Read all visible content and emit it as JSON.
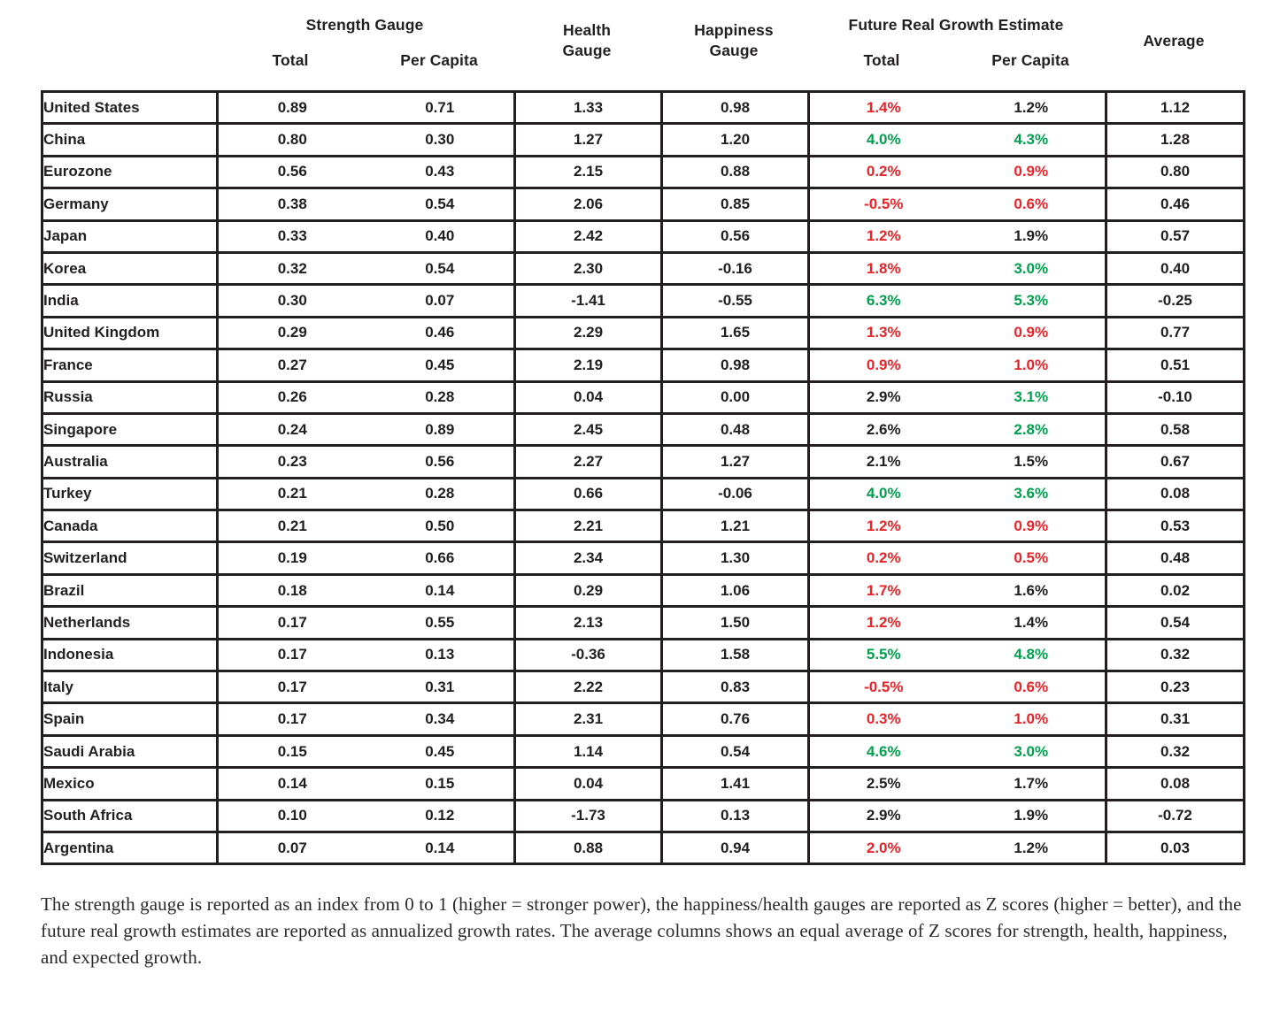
{
  "table": {
    "header": {
      "strength_group": "Strength Gauge",
      "growth_group": "Future Real Growth Estimate",
      "health_line1": "Health",
      "health_line2": "Gauge",
      "happiness_line1": "Happiness",
      "happiness_line2": "Gauge",
      "sub_total_strength": "Total",
      "sub_per_capita_strength": "Per Capita",
      "sub_total_growth": "Total",
      "sub_per_capita_growth": "Per Capita",
      "average": "Average"
    },
    "colors": {
      "red": "#e82429",
      "green": "#00a14e",
      "text": "#231f20",
      "border": "#231f20"
    },
    "rows": [
      {
        "country": "United States",
        "strength_total": "0.89",
        "strength_per_capita": "0.71",
        "health": "1.33",
        "happiness": "0.98",
        "growth_total": "1.4%",
        "growth_total_color": "red",
        "growth_per_capita": "1.2%",
        "growth_per_capita_color": "black",
        "average": "1.12"
      },
      {
        "country": "China",
        "strength_total": "0.80",
        "strength_per_capita": "0.30",
        "health": "1.27",
        "happiness": "1.20",
        "growth_total": "4.0%",
        "growth_total_color": "green",
        "growth_per_capita": "4.3%",
        "growth_per_capita_color": "green",
        "average": "1.28"
      },
      {
        "country": "Eurozone",
        "strength_total": "0.56",
        "strength_per_capita": "0.43",
        "health": "2.15",
        "happiness": "0.88",
        "growth_total": "0.2%",
        "growth_total_color": "red",
        "growth_per_capita": "0.9%",
        "growth_per_capita_color": "red",
        "average": "0.80"
      },
      {
        "country": "Germany",
        "strength_total": "0.38",
        "strength_per_capita": "0.54",
        "health": "2.06",
        "happiness": "0.85",
        "growth_total": "-0.5%",
        "growth_total_color": "red",
        "growth_per_capita": "0.6%",
        "growth_per_capita_color": "red",
        "average": "0.46"
      },
      {
        "country": "Japan",
        "strength_total": "0.33",
        "strength_per_capita": "0.40",
        "health": "2.42",
        "happiness": "0.56",
        "growth_total": "1.2%",
        "growth_total_color": "red",
        "growth_per_capita": "1.9%",
        "growth_per_capita_color": "black",
        "average": "0.57"
      },
      {
        "country": "Korea",
        "strength_total": "0.32",
        "strength_per_capita": "0.54",
        "health": "2.30",
        "happiness": "-0.16",
        "growth_total": "1.8%",
        "growth_total_color": "red",
        "growth_per_capita": "3.0%",
        "growth_per_capita_color": "green",
        "average": "0.40"
      },
      {
        "country": "India",
        "strength_total": "0.30",
        "strength_per_capita": "0.07",
        "health": "-1.41",
        "happiness": "-0.55",
        "growth_total": "6.3%",
        "growth_total_color": "green",
        "growth_per_capita": "5.3%",
        "growth_per_capita_color": "green",
        "average": "-0.25"
      },
      {
        "country": "United Kingdom",
        "strength_total": "0.29",
        "strength_per_capita": "0.46",
        "health": "2.29",
        "happiness": "1.65",
        "growth_total": "1.3%",
        "growth_total_color": "red",
        "growth_per_capita": "0.9%",
        "growth_per_capita_color": "red",
        "average": "0.77"
      },
      {
        "country": "France",
        "strength_total": "0.27",
        "strength_per_capita": "0.45",
        "health": "2.19",
        "happiness": "0.98",
        "growth_total": "0.9%",
        "growth_total_color": "red",
        "growth_per_capita": "1.0%",
        "growth_per_capita_color": "red",
        "average": "0.51"
      },
      {
        "country": "Russia",
        "strength_total": "0.26",
        "strength_per_capita": "0.28",
        "health": "0.04",
        "happiness": "0.00",
        "growth_total": "2.9%",
        "growth_total_color": "black",
        "growth_per_capita": "3.1%",
        "growth_per_capita_color": "green",
        "average": "-0.10"
      },
      {
        "country": "Singapore",
        "strength_total": "0.24",
        "strength_per_capita": "0.89",
        "health": "2.45",
        "happiness": "0.48",
        "growth_total": "2.6%",
        "growth_total_color": "black",
        "growth_per_capita": "2.8%",
        "growth_per_capita_color": "green",
        "average": "0.58"
      },
      {
        "country": "Australia",
        "strength_total": "0.23",
        "strength_per_capita": "0.56",
        "health": "2.27",
        "happiness": "1.27",
        "growth_total": "2.1%",
        "growth_total_color": "black",
        "growth_per_capita": "1.5%",
        "growth_per_capita_color": "black",
        "average": "0.67"
      },
      {
        "country": "Turkey",
        "strength_total": "0.21",
        "strength_per_capita": "0.28",
        "health": "0.66",
        "happiness": "-0.06",
        "growth_total": "4.0%",
        "growth_total_color": "green",
        "growth_per_capita": "3.6%",
        "growth_per_capita_color": "green",
        "average": "0.08"
      },
      {
        "country": "Canada",
        "strength_total": "0.21",
        "strength_per_capita": "0.50",
        "health": "2.21",
        "happiness": "1.21",
        "growth_total": "1.2%",
        "growth_total_color": "red",
        "growth_per_capita": "0.9%",
        "growth_per_capita_color": "red",
        "average": "0.53"
      },
      {
        "country": "Switzerland",
        "strength_total": "0.19",
        "strength_per_capita": "0.66",
        "health": "2.34",
        "happiness": "1.30",
        "growth_total": "0.2%",
        "growth_total_color": "red",
        "growth_per_capita": "0.5%",
        "growth_per_capita_color": "red",
        "average": "0.48"
      },
      {
        "country": "Brazil",
        "strength_total": "0.18",
        "strength_per_capita": "0.14",
        "health": "0.29",
        "happiness": "1.06",
        "growth_total": "1.7%",
        "growth_total_color": "red",
        "growth_per_capita": "1.6%",
        "growth_per_capita_color": "black",
        "average": "0.02"
      },
      {
        "country": "Netherlands",
        "strength_total": "0.17",
        "strength_per_capita": "0.55",
        "health": "2.13",
        "happiness": "1.50",
        "growth_total": "1.2%",
        "growth_total_color": "red",
        "growth_per_capita": "1.4%",
        "growth_per_capita_color": "black",
        "average": "0.54"
      },
      {
        "country": "Indonesia",
        "strength_total": "0.17",
        "strength_per_capita": "0.13",
        "health": "-0.36",
        "happiness": "1.58",
        "growth_total": "5.5%",
        "growth_total_color": "green",
        "growth_per_capita": "4.8%",
        "growth_per_capita_color": "green",
        "average": "0.32"
      },
      {
        "country": "Italy",
        "strength_total": "0.17",
        "strength_per_capita": "0.31",
        "health": "2.22",
        "happiness": "0.83",
        "growth_total": "-0.5%",
        "growth_total_color": "red",
        "growth_per_capita": "0.6%",
        "growth_per_capita_color": "red",
        "average": "0.23"
      },
      {
        "country": "Spain",
        "strength_total": "0.17",
        "strength_per_capita": "0.34",
        "health": "2.31",
        "happiness": "0.76",
        "growth_total": "0.3%",
        "growth_total_color": "red",
        "growth_per_capita": "1.0%",
        "growth_per_capita_color": "red",
        "average": "0.31"
      },
      {
        "country": "Saudi Arabia",
        "strength_total": "0.15",
        "strength_per_capita": "0.45",
        "health": "1.14",
        "happiness": "0.54",
        "growth_total": "4.6%",
        "growth_total_color": "green",
        "growth_per_capita": "3.0%",
        "growth_per_capita_color": "green",
        "average": "0.32"
      },
      {
        "country": "Mexico",
        "strength_total": "0.14",
        "strength_per_capita": "0.15",
        "health": "0.04",
        "happiness": "1.41",
        "growth_total": "2.5%",
        "growth_total_color": "black",
        "growth_per_capita": "1.7%",
        "growth_per_capita_color": "black",
        "average": "0.08"
      },
      {
        "country": "South Africa",
        "strength_total": "0.10",
        "strength_per_capita": "0.12",
        "health": "-1.73",
        "happiness": "0.13",
        "growth_total": "2.9%",
        "growth_total_color": "black",
        "growth_per_capita": "1.9%",
        "growth_per_capita_color": "black",
        "average": "-0.72"
      },
      {
        "country": "Argentina",
        "strength_total": "0.07",
        "strength_per_capita": "0.14",
        "health": "0.88",
        "happiness": "0.94",
        "growth_total": "2.0%",
        "growth_total_color": "red",
        "growth_per_capita": "1.2%",
        "growth_per_capita_color": "black",
        "average": "0.03"
      }
    ]
  },
  "footnote": "The strength gauge is reported as an index from 0 to 1 (higher = stronger power), the happiness/health gauges are reported as Z scores (higher = better), and the future real growth estimates are reported as annualized growth rates. The average columns shows an equal average of Z scores for strength, health, happiness, and expected growth."
}
